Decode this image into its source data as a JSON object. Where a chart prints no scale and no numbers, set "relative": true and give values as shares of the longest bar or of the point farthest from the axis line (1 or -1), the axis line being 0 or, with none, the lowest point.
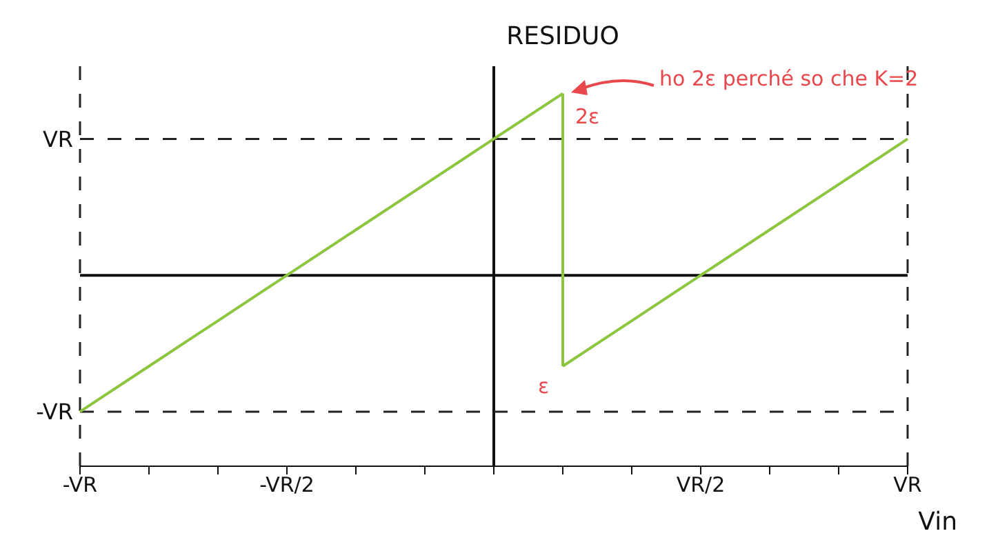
{
  "chart_data": {
    "type": "line",
    "xlabel": "Vin",
    "ylabel": "RESIDUO",
    "relative": true,
    "categories": [
      "-VR",
      null,
      null,
      "-VR/2",
      null,
      null,
      null,
      null,
      null,
      "VR/2",
      null,
      null,
      "VR"
    ],
    "series": [
      {
        "color": "#8cc63f",
        "values": [
          -0.75,
          -0.5,
          -0.25,
          0,
          0.25,
          0.5,
          0.75,
          1,
          null,
          null,
          null,
          null,
          null
        ]
      },
      {
        "color": "#8cc63f",
        "values": [
          null,
          null,
          null,
          null,
          null,
          null,
          null,
          -0.5,
          -0.25,
          0,
          0.25,
          0.5,
          0.75
        ]
      }
    ],
    "ref_lines": [
      {
        "axis": "x",
        "value": "-VR",
        "color": "#222222",
        "line_style": "dashed"
      },
      {
        "axis": "x",
        "value": "VR",
        "color": "#222222",
        "line_style": "dashed"
      },
      {
        "axis": "y",
        "value": 0.75,
        "label": "VR",
        "color": "#222222",
        "line_style": "dashed"
      },
      {
        "axis": "y",
        "value": -0.75,
        "label": "-VR",
        "color": "#222222",
        "line_style": "dashed"
      }
    ],
    "annotations": [
      "2ε",
      "ε",
      "ho 2ε perché so che K=2"
    ],
    "legend": false,
    "marker": "none",
    "line_style": "solid"
  }
}
